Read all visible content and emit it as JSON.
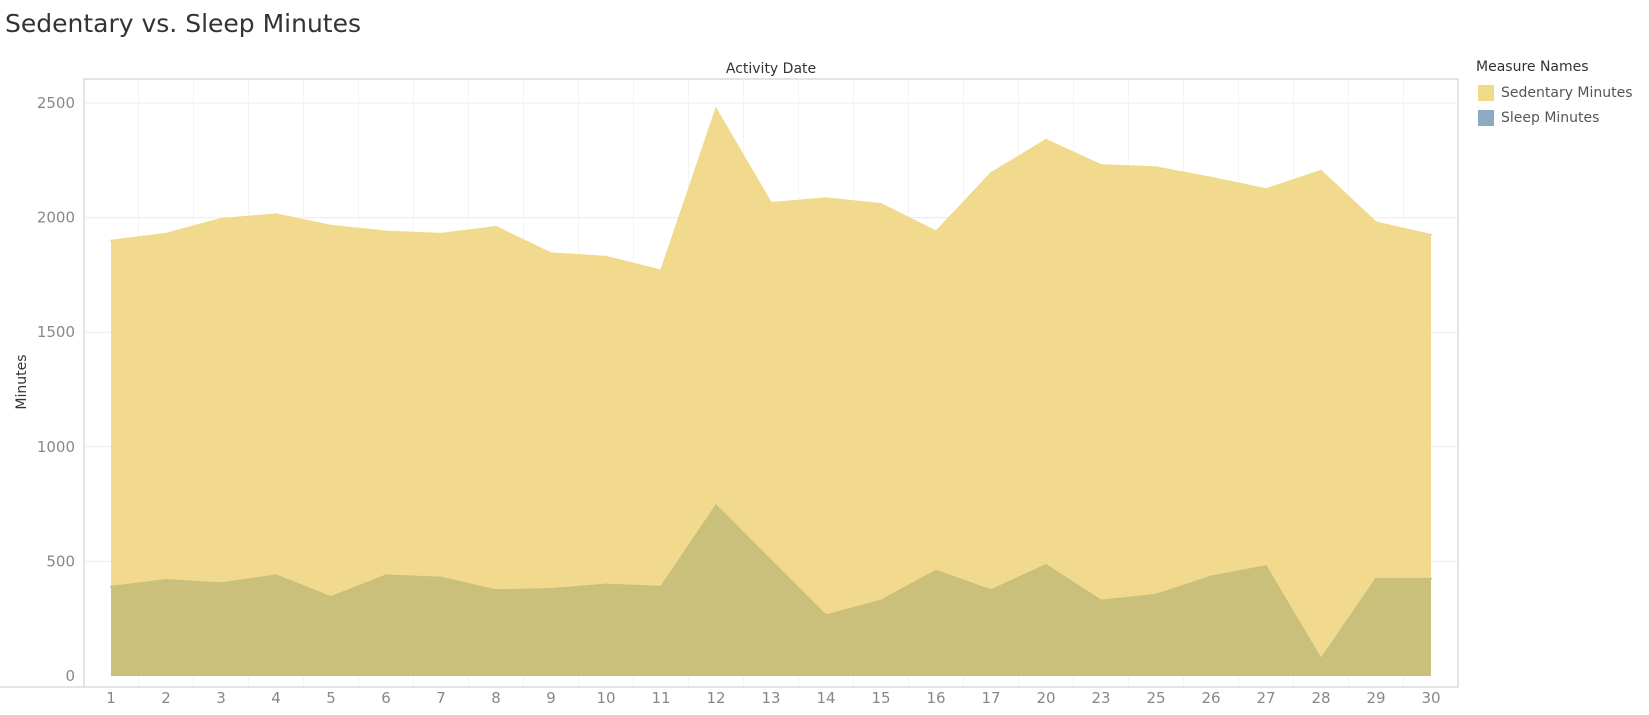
{
  "colors": {
    "sedentary": "#f1d98a",
    "sleep": "#c8bf7c",
    "sleep_swatch": "#8ea9c4",
    "grid": "#ececec",
    "axis": "#c9c9c9",
    "tick_text": "#888888"
  },
  "chart_data": {
    "type": "area",
    "title": "Sedentary vs. Sleep Minutes",
    "xlabel": "Activity Date",
    "ylabel": "Minutes",
    "ylim": [
      0,
      2500
    ],
    "yticks": [
      0,
      500,
      1000,
      1500,
      2000,
      2500
    ],
    "categories": [
      "1",
      "2",
      "3",
      "4",
      "5",
      "6",
      "7",
      "8",
      "9",
      "10",
      "11",
      "12",
      "13",
      "14",
      "15",
      "16",
      "17",
      "20",
      "23",
      "25",
      "26",
      "27",
      "28",
      "29",
      "30"
    ],
    "grid": true,
    "legend_title": "Measure Names",
    "legend_position": "top-right",
    "series": [
      {
        "name": "Sedentary Minutes",
        "color_key": "sedentary",
        "values": [
          1900,
          1930,
          1995,
          2015,
          1965,
          1940,
          1930,
          1960,
          1845,
          1830,
          1770,
          2475,
          2065,
          2085,
          2060,
          1940,
          2195,
          2340,
          2230,
          2220,
          2175,
          2125,
          2205,
          1980,
          1925
        ]
      },
      {
        "name": "Sleep Minutes",
        "color_key": "sleep",
        "values": [
          390,
          420,
          405,
          440,
          345,
          440,
          430,
          375,
          380,
          400,
          390,
          745,
          505,
          265,
          330,
          460,
          375,
          485,
          330,
          355,
          435,
          480,
          75,
          425,
          425
        ]
      }
    ]
  }
}
